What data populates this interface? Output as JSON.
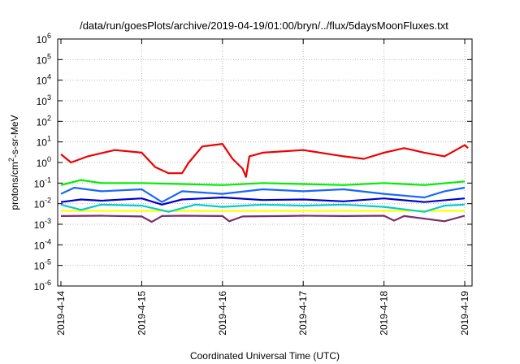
{
  "chart_data": {
    "type": "line",
    "title": "/data/run/goesPlots/archive/2019-04-19/01:00/bryn/../flux/5daysMoonFluxes.txt",
    "xlabel": "Coordinated Universal Time (UTC)",
    "ylabel": {
      "base": "protons/cm",
      "sup": "2",
      "rest": "-s-sr-MeV"
    },
    "yscale": "log",
    "ylim": [
      1e-06,
      1000000.0
    ],
    "xlim": [
      "2019-04-14",
      "2019-04-19 01:00"
    ],
    "grid": true,
    "x_ticks": [
      "2019-4-14",
      "2019-4-15",
      "2019-4-16",
      "2019-4-17",
      "2019-4-18",
      "2019-4-19"
    ],
    "y_ticks": [
      {
        "base": "10",
        "exp": "-6"
      },
      {
        "base": "10",
        "exp": "-5"
      },
      {
        "base": "10",
        "exp": "-4"
      },
      {
        "base": "10",
        "exp": "-3"
      },
      {
        "base": "10",
        "exp": "-2"
      },
      {
        "base": "10",
        "exp": "-1"
      },
      {
        "base": "10",
        "exp": "0"
      },
      {
        "base": "10",
        "exp": "1"
      },
      {
        "base": "10",
        "exp": "2"
      },
      {
        "base": "10",
        "exp": "3"
      },
      {
        "base": "10",
        "exp": "4"
      },
      {
        "base": "10",
        "exp": "5"
      },
      {
        "base": "10",
        "exp": "6"
      }
    ],
    "series": [
      {
        "color": "#7b2d6e",
        "points": [
          [
            "2019-04-14T00:00",
            0.0025
          ],
          [
            "2019-04-14T12:00",
            0.0026
          ],
          [
            "2019-04-15T00:00",
            0.0024
          ],
          [
            "2019-04-15T03:00",
            0.0013
          ],
          [
            "2019-04-15T06:00",
            0.0025
          ],
          [
            "2019-04-15T12:00",
            0.0026
          ],
          [
            "2019-04-16T00:00",
            0.0025
          ],
          [
            "2019-04-16T02:00",
            0.0014
          ],
          [
            "2019-04-16T06:00",
            0.0024
          ],
          [
            "2019-04-16T18:00",
            0.0025
          ],
          [
            "2019-04-17T00:00",
            0.0026
          ],
          [
            "2019-04-17T12:00",
            0.0025
          ],
          [
            "2019-04-18T00:00",
            0.0026
          ],
          [
            "2019-04-18T03:00",
            0.0015
          ],
          [
            "2019-04-18T06:00",
            0.0025
          ],
          [
            "2019-04-18T18:00",
            0.0014
          ],
          [
            "2019-04-19T00:00",
            0.0026
          ]
        ]
      },
      {
        "color": "#ffff00",
        "points": [
          [
            "2019-04-14T00:00",
            0.0045
          ],
          [
            "2019-04-15T00:00",
            0.0045
          ],
          [
            "2019-04-16T00:00",
            0.0044
          ],
          [
            "2019-04-17T00:00",
            0.0045
          ],
          [
            "2019-04-18T00:00",
            0.0045
          ],
          [
            "2019-04-19T00:00",
            0.0045
          ]
        ]
      },
      {
        "color": "#00cccc",
        "points": [
          [
            "2019-04-14T00:00",
            0.009
          ],
          [
            "2019-04-14T06:00",
            0.005
          ],
          [
            "2019-04-14T12:00",
            0.009
          ],
          [
            "2019-04-15T00:00",
            0.008
          ],
          [
            "2019-04-15T08:00",
            0.004
          ],
          [
            "2019-04-15T16:00",
            0.009
          ],
          [
            "2019-04-16T00:00",
            0.007
          ],
          [
            "2019-04-16T12:00",
            0.009
          ],
          [
            "2019-04-17T00:00",
            0.008
          ],
          [
            "2019-04-17T12:00",
            0.009
          ],
          [
            "2019-04-18T00:00",
            0.007
          ],
          [
            "2019-04-18T12:00",
            0.004
          ],
          [
            "2019-04-18T18:00",
            0.008
          ],
          [
            "2019-04-19T00:00",
            0.009
          ]
        ]
      },
      {
        "color": "#0000cc",
        "points": [
          [
            "2019-04-14T00:00",
            0.012
          ],
          [
            "2019-04-14T06:00",
            0.016
          ],
          [
            "2019-04-14T12:00",
            0.014
          ],
          [
            "2019-04-15T00:00",
            0.018
          ],
          [
            "2019-04-15T06:00",
            0.009
          ],
          [
            "2019-04-15T12:00",
            0.016
          ],
          [
            "2019-04-16T00:00",
            0.02
          ],
          [
            "2019-04-16T12:00",
            0.015
          ],
          [
            "2019-04-17T00:00",
            0.016
          ],
          [
            "2019-04-17T12:00",
            0.013
          ],
          [
            "2019-04-18T00:00",
            0.018
          ],
          [
            "2019-04-18T12:00",
            0.012
          ],
          [
            "2019-04-19T00:00",
            0.018
          ]
        ]
      },
      {
        "color": "#1a66ff",
        "points": [
          [
            "2019-04-14T00:00",
            0.03
          ],
          [
            "2019-04-14T04:00",
            0.06
          ],
          [
            "2019-04-14T12:00",
            0.04
          ],
          [
            "2019-04-15T00:00",
            0.05
          ],
          [
            "2019-04-15T06:00",
            0.012
          ],
          [
            "2019-04-15T12:00",
            0.04
          ],
          [
            "2019-04-16T00:00",
            0.03
          ],
          [
            "2019-04-16T12:00",
            0.05
          ],
          [
            "2019-04-17T00:00",
            0.04
          ],
          [
            "2019-04-17T12:00",
            0.05
          ],
          [
            "2019-04-18T00:00",
            0.03
          ],
          [
            "2019-04-18T12:00",
            0.02
          ],
          [
            "2019-04-18T18:00",
            0.04
          ],
          [
            "2019-04-19T00:00",
            0.06
          ]
        ]
      },
      {
        "color": "#00ee00",
        "points": [
          [
            "2019-04-14T00:00",
            0.08
          ],
          [
            "2019-04-14T06:00",
            0.14
          ],
          [
            "2019-04-14T12:00",
            0.1
          ],
          [
            "2019-04-15T00:00",
            0.1
          ],
          [
            "2019-04-15T12:00",
            0.09
          ],
          [
            "2019-04-16T00:00",
            0.08
          ],
          [
            "2019-04-16T12:00",
            0.1
          ],
          [
            "2019-04-17T00:00",
            0.09
          ],
          [
            "2019-04-17T12:00",
            0.08
          ],
          [
            "2019-04-18T00:00",
            0.1
          ],
          [
            "2019-04-18T12:00",
            0.08
          ],
          [
            "2019-04-19T00:00",
            0.12
          ]
        ]
      },
      {
        "color": "#ee0000",
        "points": [
          [
            "2019-04-14T00:00",
            2.5
          ],
          [
            "2019-04-14T03:00",
            1.0
          ],
          [
            "2019-04-14T08:00",
            2.0
          ],
          [
            "2019-04-14T16:00",
            4.0
          ],
          [
            "2019-04-15T00:00",
            3.0
          ],
          [
            "2019-04-15T04:00",
            0.6
          ],
          [
            "2019-04-15T08:00",
            0.3
          ],
          [
            "2019-04-15T12:00",
            0.3
          ],
          [
            "2019-04-15T14:00",
            1.0
          ],
          [
            "2019-04-15T18:00",
            6.0
          ],
          [
            "2019-04-16T00:00",
            8.0
          ],
          [
            "2019-04-16T03:00",
            1.5
          ],
          [
            "2019-04-16T06:00",
            0.5
          ],
          [
            "2019-04-16T07:00",
            0.2
          ],
          [
            "2019-04-16T08:00",
            2.0
          ],
          [
            "2019-04-16T12:00",
            3.0
          ],
          [
            "2019-04-17T00:00",
            4.0
          ],
          [
            "2019-04-17T12:00",
            2.0
          ],
          [
            "2019-04-17T18:00",
            1.5
          ],
          [
            "2019-04-18T00:00",
            3.0
          ],
          [
            "2019-04-18T06:00",
            5.0
          ],
          [
            "2019-04-18T12:00",
            3.0
          ],
          [
            "2019-04-18T18:00",
            2.0
          ],
          [
            "2019-04-19T00:00",
            7.0
          ],
          [
            "2019-04-19T01:00",
            5.0
          ]
        ]
      }
    ]
  }
}
